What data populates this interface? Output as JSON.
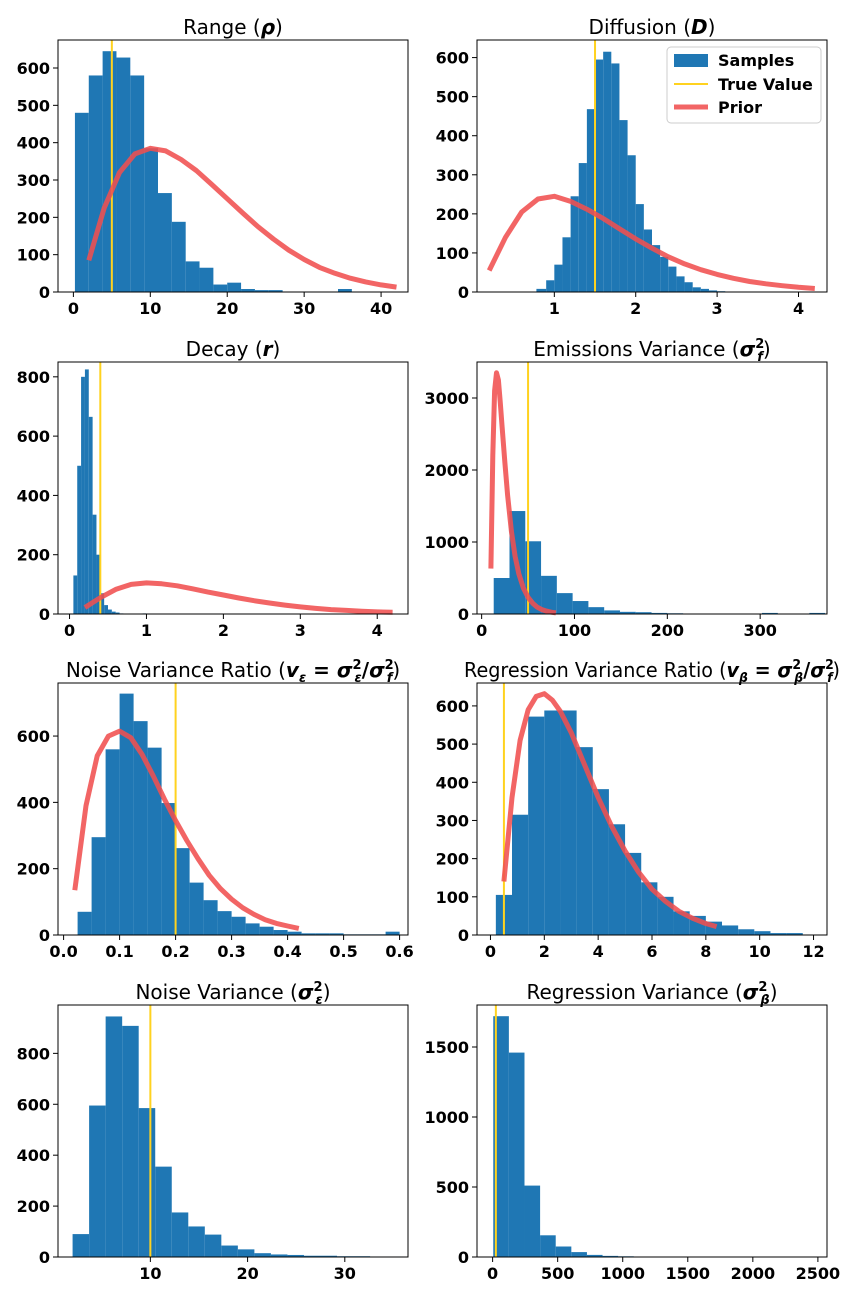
{
  "colors": {
    "samples": "#1f77b4",
    "true_value": "#ffd21f",
    "prior": "#f05050"
  },
  "legend": {
    "placement": "upper-right",
    "panel": 1,
    "entries": [
      "Samples",
      "True Value",
      "Prior"
    ]
  },
  "chart_data": [
    {
      "type": "histogram",
      "title_main": "Range (",
      "title_sym": "ρ",
      "title_end": ")",
      "xlim": [
        -2,
        43.5
      ],
      "ylim": [
        0,
        675
      ],
      "xticks": [
        0,
        10,
        20,
        30,
        40
      ],
      "yticks": [
        0,
        100,
        200,
        300,
        400,
        500,
        600
      ],
      "bin_edges": [
        0.2,
        2.0,
        3.8,
        5.6,
        7.4,
        9.2,
        11.0,
        12.8,
        14.6,
        16.4,
        18.2,
        20.0,
        21.8,
        23.6,
        25.4,
        27.2,
        29.0,
        30.8,
        32.6,
        34.4,
        36.2
      ],
      "counts": [
        480,
        580,
        645,
        628,
        580,
        385,
        265,
        188,
        82,
        65,
        20,
        25,
        8,
        5,
        5,
        0,
        0,
        0,
        0,
        8
      ],
      "true_value": 5,
      "prior_x": [
        2,
        4,
        6,
        8,
        10,
        12,
        14,
        16,
        18,
        20,
        22,
        24,
        26,
        28,
        30,
        32,
        34,
        36,
        38,
        40,
        42
      ],
      "prior_y": [
        85,
        225,
        320,
        370,
        385,
        378,
        355,
        325,
        288,
        250,
        212,
        175,
        142,
        112,
        87,
        66,
        50,
        37,
        27,
        19,
        13
      ]
    },
    {
      "type": "histogram",
      "title_main": "Diffusion (",
      "title_sym": "D",
      "title_end": ")",
      "xlim": [
        0.05,
        4.35
      ],
      "ylim": [
        0,
        645
      ],
      "xticks": [
        1,
        2,
        3,
        4
      ],
      "yticks": [
        0,
        100,
        200,
        300,
        400,
        500,
        600
      ],
      "bin_edges": [
        0.78,
        0.9,
        1.0,
        1.1,
        1.2,
        1.3,
        1.4,
        1.5,
        1.6,
        1.7,
        1.8,
        1.9,
        2.0,
        2.1,
        2.2,
        2.3,
        2.4,
        2.5,
        2.6,
        2.7,
        2.8,
        2.9,
        3.0,
        3.1
      ],
      "counts": [
        8,
        30,
        70,
        140,
        245,
        330,
        468,
        595,
        615,
        585,
        440,
        350,
        225,
        160,
        120,
        90,
        65,
        40,
        25,
        12,
        8,
        4,
        2
      ],
      "true_value": 1.5,
      "prior_x": [
        0.2,
        0.4,
        0.6,
        0.8,
        1.0,
        1.2,
        1.4,
        1.6,
        1.8,
        2.0,
        2.2,
        2.4,
        2.6,
        2.8,
        3.0,
        3.2,
        3.4,
        3.6,
        3.8,
        4.0,
        4.2
      ],
      "prior_y": [
        55,
        140,
        205,
        238,
        245,
        232,
        212,
        188,
        162,
        136,
        112,
        90,
        72,
        57,
        45,
        35,
        27,
        21,
        16,
        12,
        9
      ]
    },
    {
      "type": "histogram",
      "title_main": "Decay (",
      "title_sym": "r",
      "title_end": ")",
      "xlim": [
        -0.15,
        4.4
      ],
      "ylim": [
        0,
        850
      ],
      "xticks": [
        0,
        1,
        2,
        3,
        4
      ],
      "yticks": [
        0,
        200,
        400,
        600,
        800
      ],
      "bin_edges": [
        0.05,
        0.1,
        0.15,
        0.2,
        0.25,
        0.3,
        0.35,
        0.4,
        0.45,
        0.5,
        0.55,
        0.6,
        0.65,
        0.7,
        0.75,
        0.8,
        0.85,
        0.9,
        0.95,
        1.0
      ],
      "counts": [
        130,
        500,
        800,
        825,
        665,
        335,
        200,
        70,
        30,
        15,
        8,
        5,
        2,
        1,
        0,
        0,
        0,
        0,
        2
      ],
      "true_value": 0.4,
      "prior_x": [
        0.2,
        0.4,
        0.6,
        0.8,
        1.0,
        1.2,
        1.4,
        1.6,
        1.8,
        2.0,
        2.2,
        2.4,
        2.6,
        2.8,
        3.0,
        3.2,
        3.4,
        3.6,
        3.8,
        4.0,
        4.2
      ],
      "prior_y": [
        22,
        55,
        83,
        100,
        105,
        102,
        95,
        85,
        74,
        64,
        54,
        45,
        37,
        30,
        24,
        19,
        15,
        12,
        9,
        7,
        6
      ]
    },
    {
      "type": "histogram",
      "title_main": "Emissions Variance (",
      "title_sym": "σ",
      "title_sub": "f",
      "title_sup": "2",
      "title_end": ")",
      "xlim": [
        -5,
        372
      ],
      "ylim": [
        0,
        3500
      ],
      "xticks": [
        0,
        100,
        200,
        300
      ],
      "yticks": [
        0,
        1000,
        2000,
        3000
      ],
      "bin_edges": [
        13,
        30,
        47,
        64,
        81,
        98,
        115,
        132,
        149,
        166,
        183,
        200,
        217,
        234,
        251,
        268,
        285,
        302,
        319,
        336,
        353,
        370
      ],
      "counts": [
        500,
        1430,
        1010,
        530,
        290,
        180,
        95,
        50,
        30,
        25,
        15,
        10,
        5,
        5,
        5,
        5,
        5,
        15,
        2,
        2,
        15
      ],
      "true_value": 50,
      "prior_x": [
        10,
        12,
        14,
        16,
        18,
        20,
        22,
        25,
        28,
        32,
        36,
        40,
        45,
        50,
        55,
        60,
        65,
        70,
        75,
        80
      ],
      "prior_y": [
        630,
        2200,
        3100,
        3350,
        3250,
        2950,
        2600,
        2100,
        1650,
        1150,
        800,
        560,
        360,
        230,
        150,
        95,
        60,
        40,
        25,
        15
      ]
    },
    {
      "type": "histogram",
      "title_main": "Noise Variance Ratio (",
      "title_lhs_sym": "v",
      "title_lhs_sub": "ε",
      "title_eq": " = ",
      "title_n_sym": "σ",
      "title_n_sub": "ε",
      "title_n_sup": "2",
      "title_slash": "/",
      "title_d_sym": "σ",
      "title_d_sub": "f",
      "title_d_sup": "2",
      "title_end": ")",
      "xlim": [
        -0.01,
        0.615
      ],
      "ylim": [
        0,
        760
      ],
      "xticks": [
        0.0,
        0.1,
        0.2,
        0.3,
        0.4,
        0.5,
        0.6
      ],
      "yticks": [
        0,
        200,
        400,
        600
      ],
      "bin_edges": [
        0.025,
        0.05,
        0.075,
        0.1,
        0.125,
        0.15,
        0.175,
        0.2,
        0.225,
        0.25,
        0.275,
        0.3,
        0.325,
        0.35,
        0.375,
        0.4,
        0.425,
        0.45,
        0.475,
        0.5,
        0.525,
        0.55,
        0.575,
        0.6
      ],
      "counts": [
        70,
        295,
        560,
        728,
        645,
        565,
        398,
        262,
        158,
        105,
        72,
        55,
        35,
        25,
        15,
        10,
        5,
        5,
        5,
        2,
        2,
        2,
        10
      ],
      "true_value": 0.2,
      "prior_x": [
        0.02,
        0.04,
        0.06,
        0.08,
        0.1,
        0.12,
        0.14,
        0.16,
        0.18,
        0.2,
        0.22,
        0.24,
        0.26,
        0.28,
        0.3,
        0.32,
        0.34,
        0.36,
        0.38,
        0.4,
        0.42
      ],
      "prior_y": [
        135,
        390,
        540,
        600,
        615,
        595,
        545,
        480,
        410,
        345,
        285,
        230,
        180,
        140,
        108,
        82,
        62,
        46,
        35,
        27,
        20
      ]
    },
    {
      "type": "histogram",
      "title_main": "Regression Variance Ratio (",
      "title_lhs_sym": "v",
      "title_lhs_sub": "β",
      "title_eq": " = ",
      "title_n_sym": "σ",
      "title_n_sub": "β",
      "title_n_sup": "2",
      "title_slash": "/",
      "title_d_sym": "σ",
      "title_d_sub": "f",
      "title_d_sup": "2",
      "title_end": ")",
      "xlim": [
        -0.5,
        12.5
      ],
      "ylim": [
        0,
        660
      ],
      "xticks": [
        0,
        2,
        4,
        6,
        8,
        10,
        12
      ],
      "yticks": [
        0,
        100,
        200,
        300,
        400,
        500,
        600
      ],
      "bin_edges": [
        0.2,
        0.8,
        1.4,
        2.0,
        2.6,
        3.2,
        3.8,
        4.4,
        5.0,
        5.6,
        6.2,
        6.8,
        7.4,
        8.0,
        8.6,
        9.2,
        9.8,
        10.4,
        11.0,
        11.6
      ],
      "counts": [
        105,
        315,
        572,
        588,
        588,
        492,
        382,
        290,
        215,
        138,
        100,
        62,
        50,
        35,
        25,
        15,
        10,
        5,
        5
      ],
      "true_value": 0.5,
      "prior_x": [
        0.5,
        0.8,
        1.1,
        1.4,
        1.7,
        2.0,
        2.3,
        2.6,
        3.0,
        3.5,
        4.0,
        4.5,
        5.0,
        5.5,
        6.0,
        6.5,
        7.0,
        7.5,
        8.0,
        8.4
      ],
      "prior_y": [
        140,
        360,
        510,
        590,
        625,
        632,
        615,
        585,
        530,
        445,
        360,
        285,
        220,
        165,
        120,
        88,
        62,
        44,
        30,
        22
      ]
    },
    {
      "type": "histogram",
      "title_main": "Noise Variance (",
      "title_sym": "σ",
      "title_sub": "ε",
      "title_sup": "2",
      "title_end": ")",
      "xlim": [
        0.5,
        36.5
      ],
      "ylim": [
        0,
        990
      ],
      "xticks": [
        10,
        20,
        30
      ],
      "yticks": [
        0,
        200,
        400,
        600,
        800
      ],
      "bin_edges": [
        2.0,
        3.7,
        5.4,
        7.1,
        8.8,
        10.5,
        12.2,
        13.9,
        15.6,
        17.3,
        19.0,
        20.7,
        22.4,
        24.1,
        25.8,
        27.5,
        29.2,
        30.9,
        32.6,
        34.3,
        36.0
      ],
      "counts": [
        90,
        595,
        945,
        908,
        585,
        355,
        175,
        120,
        88,
        45,
        30,
        15,
        10,
        8,
        5,
        5,
        3,
        3,
        2,
        2
      ],
      "true_value": 10,
      "prior_x": [],
      "prior_y": []
    },
    {
      "type": "histogram",
      "title_main": "Regression Variance (",
      "title_sym": "σ",
      "title_sub": "β",
      "title_sup": "2",
      "title_end": ")",
      "xlim": [
        -120,
        2570
      ],
      "ylim": [
        0,
        1800
      ],
      "xticks": [
        0,
        500,
        1000,
        1500,
        2000,
        2500
      ],
      "yticks": [
        0,
        500,
        1000,
        1500
      ],
      "bin_edges": [
        5,
        125,
        245,
        365,
        485,
        605,
        725,
        845,
        965,
        1085,
        1205
      ],
      "counts": [
        1720,
        1460,
        510,
        155,
        75,
        35,
        15,
        8,
        5,
        3
      ],
      "true_value": 25,
      "prior_x": [],
      "prior_y": []
    }
  ]
}
